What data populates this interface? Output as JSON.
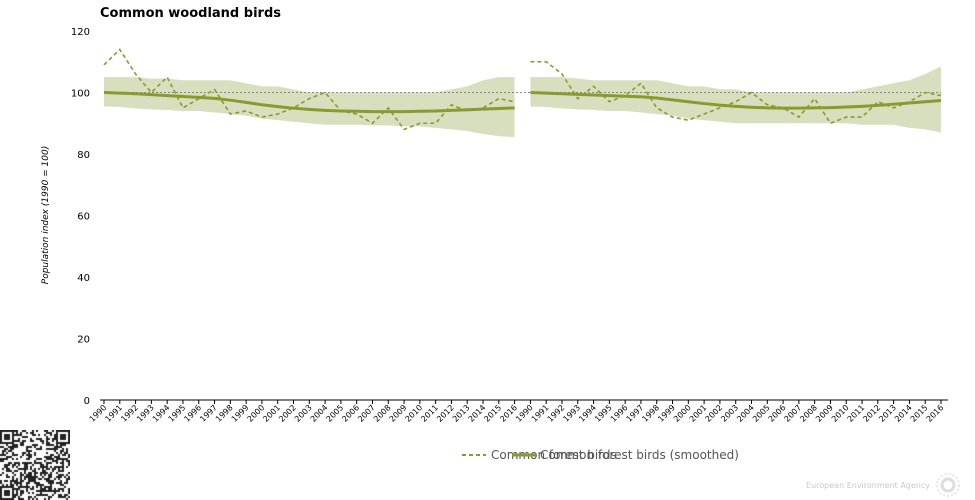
{
  "chart_data": {
    "type": "line",
    "title": "Common woodland birds",
    "ylabel": "Population index (1990 = 100)",
    "xlabel": "",
    "ylim": [
      0,
      120
    ],
    "yticks": [
      0,
      20,
      40,
      60,
      80,
      100,
      120
    ],
    "grid": false,
    "legend_position": "bottom",
    "x": [
      "1990",
      "1991",
      "1992",
      "1993",
      "1994",
      "1995",
      "1996",
      "1997",
      "1998",
      "1999",
      "2000",
      "2001",
      "2002",
      "2003",
      "2004",
      "2005",
      "2006",
      "2007",
      "2008",
      "2009",
      "2010",
      "2011",
      "2012",
      "2013",
      "2014",
      "2015",
      "2016",
      "1990",
      "1991",
      "1992",
      "1993",
      "1994",
      "1995",
      "1996",
      "1997",
      "1998",
      "1999",
      "2000",
      "2001",
      "2002",
      "2003",
      "2004",
      "2005",
      "2006",
      "2007",
      "2008",
      "2009",
      "2010",
      "2011",
      "2012",
      "2013",
      "2014",
      "2015",
      "2016"
    ],
    "reference_line": 100,
    "series": [
      {
        "name": "Common forest birds",
        "style": "dashed",
        "color": "#8a9a2f",
        "panels": [
          [
            109,
            114,
            106,
            100,
            105,
            95,
            98,
            101,
            93,
            94,
            92,
            93,
            95,
            98,
            100,
            94,
            93,
            90,
            95,
            88,
            90,
            90,
            96,
            94,
            95,
            98,
            97
          ],
          [
            110,
            110,
            106,
            98,
            102,
            97,
            99,
            103,
            95,
            92,
            91,
            93,
            95,
            97,
            100,
            96,
            95,
            92,
            98,
            90,
            92,
            92,
            97,
            95,
            97,
            100,
            99
          ]
        ]
      },
      {
        "name": "Common forest birds (smoothed)",
        "style": "solid",
        "color": "#8a9a2f",
        "panels": [
          [
            100,
            99.8,
            99.6,
            99.3,
            99,
            98.7,
            98.4,
            98.1,
            97.5,
            96.8,
            96,
            95.4,
            94.9,
            94.5,
            94.2,
            94,
            93.9,
            93.8,
            93.8,
            93.8,
            93.9,
            94,
            94.2,
            94.4,
            94.6,
            94.8,
            95
          ],
          [
            100,
            99.8,
            99.6,
            99.4,
            99.2,
            99,
            98.8,
            98.6,
            98.2,
            97.6,
            97,
            96.4,
            95.9,
            95.5,
            95.2,
            95,
            94.9,
            94.9,
            95,
            95.1,
            95.3,
            95.5,
            95.8,
            96.2,
            96.6,
            97,
            97.4
          ]
        ],
        "band_upper": [
          [
            105,
            105,
            105,
            104.5,
            104.5,
            104,
            104,
            104,
            104,
            103,
            102,
            102,
            101,
            100,
            100,
            100,
            100,
            100,
            100,
            100,
            100,
            100,
            101,
            102,
            104,
            105,
            105
          ],
          [
            105,
            105,
            105,
            104.5,
            104,
            104,
            104,
            104,
            104,
            103,
            102,
            102,
            101,
            101,
            100,
            100,
            100,
            100,
            100,
            100,
            100,
            101,
            102,
            103,
            104,
            106,
            108.5
          ]
        ],
        "band_lower": [
          [
            95.5,
            95.3,
            94.8,
            94.5,
            94.3,
            94,
            94,
            93.5,
            93,
            92.5,
            91.5,
            91,
            90.5,
            90,
            89.5,
            89.5,
            89.5,
            89.3,
            89.3,
            89,
            89,
            88.5,
            88,
            87.5,
            86.5,
            85.8,
            85.5
          ],
          [
            95.5,
            95.3,
            94.8,
            94.5,
            94.3,
            94,
            94,
            93.5,
            93,
            92.5,
            91.5,
            91,
            90.5,
            90,
            90,
            90,
            90,
            90,
            90,
            90,
            90,
            89.5,
            89.5,
            89.5,
            88.5,
            88,
            87
          ]
        ]
      }
    ],
    "legend": [
      {
        "label": "Common forest birds",
        "style": "dashed"
      },
      {
        "label": "Common forest birds (smoothed)",
        "style": "solid"
      }
    ]
  },
  "branding": {
    "agency": "European Environment Agency"
  },
  "colors": {
    "band": "#d8dfbf",
    "line": "#8a9a2f",
    "reference": "#888888"
  }
}
